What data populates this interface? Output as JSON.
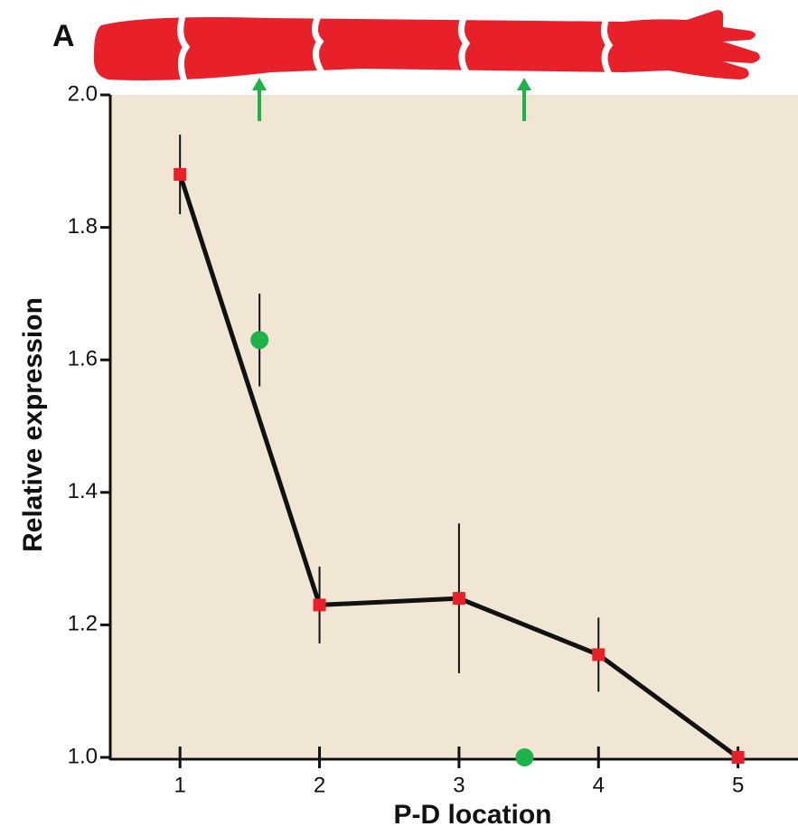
{
  "chart_data": {
    "type": "line",
    "panel_label": "A",
    "xlabel": "P-D location",
    "ylabel": "Relative expression",
    "xlim": [
      0.5,
      5.43
    ],
    "ylim": [
      1.0,
      2.0
    ],
    "xticks": [
      1,
      2,
      3,
      4,
      5
    ],
    "yticks": [
      {
        "value": 1.0,
        "label": "1.0"
      },
      1.2,
      1.4,
      1.6,
      1.8,
      {
        "value": 2.0,
        "label": "2.0"
      }
    ],
    "background": "#f1e6d4",
    "series": [
      {
        "color": "#e8202a",
        "line_color": "#111111",
        "marker": "square",
        "connected": true,
        "x": [
          1,
          2,
          3,
          4,
          5
        ],
        "values": [
          1.88,
          1.23,
          1.24,
          1.155,
          1.0
        ],
        "errors": [
          0.06,
          0.058,
          0.113,
          0.056,
          null
        ]
      },
      {
        "color": "#1db34a",
        "marker": "circle",
        "connected": false,
        "x": [
          1.57,
          3.47
        ],
        "values": [
          1.63,
          1.0
        ],
        "errors": [
          0.07,
          null
        ]
      }
    ]
  }
}
